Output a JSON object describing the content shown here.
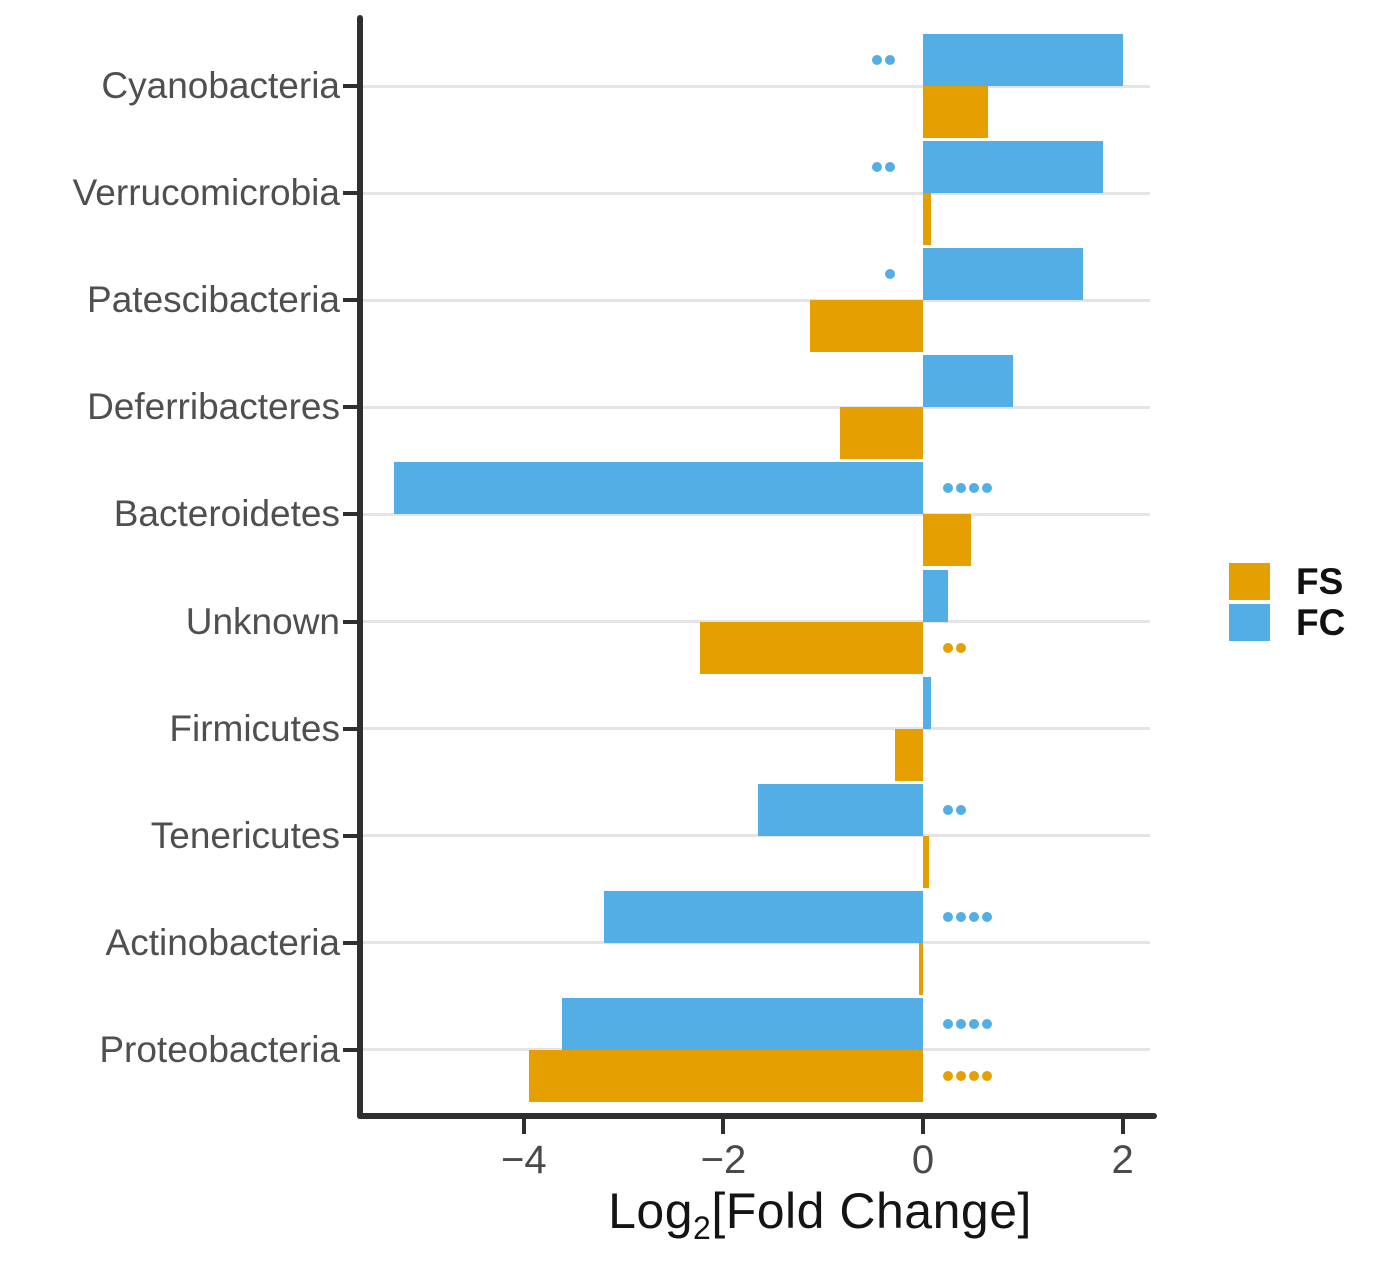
{
  "chart_data": {
    "type": "bar",
    "orientation": "horizontal",
    "title": "",
    "xlabel": "Log2[Fold Change]",
    "ylabel": "",
    "categories": [
      "Cyanobacteria",
      "Verrucomicrobia",
      "Patescibacteria",
      "Deferribacteres",
      "Bacteroidetes",
      "Unknown",
      "Firmicutes",
      "Tenericutes",
      "Actinobacteria",
      "Proteobacteria"
    ],
    "series": [
      {
        "name": "FC",
        "color": "#52AEE4",
        "values": [
          2.0,
          1.8,
          1.6,
          0.9,
          -5.3,
          0.25,
          0.08,
          -1.65,
          -3.2,
          -3.62
        ],
        "significance": [
          "**",
          "**",
          "*",
          "",
          "****",
          "",
          "",
          "**",
          "****",
          "****"
        ]
      },
      {
        "name": "FS",
        "color": "#E69F00",
        "values": [
          0.65,
          0.08,
          -1.13,
          -0.83,
          0.48,
          -2.23,
          -0.28,
          0.06,
          -0.04,
          -3.95
        ],
        "significance": [
          "",
          "",
          "",
          "",
          "",
          "**",
          "",
          "",
          "",
          "****"
        ]
      }
    ],
    "xlim": [
      -5.6,
      2.33
    ],
    "x_tick_values": [
      -4,
      -2,
      0,
      2
    ],
    "grid": "horizontal light-gray category lines",
    "legend_position": "right"
  },
  "x_axis": {
    "tick_labels": [
      "−4",
      "−2",
      "0",
      "2"
    ],
    "title_prefix": "Log",
    "title_sub": "2",
    "title_suffix": "[Fold Change]"
  },
  "legend": {
    "items": [
      {
        "label": "FS",
        "color": "#E69F00"
      },
      {
        "label": "FC",
        "color": "#52AEE4"
      }
    ]
  }
}
